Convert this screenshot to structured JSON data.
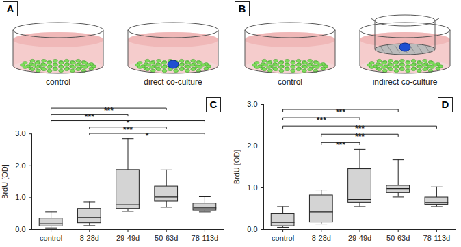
{
  "panels": [
    {
      "panel": "A",
      "dishes": [
        {
          "label": "control"
        },
        {
          "label": "direct co-culture"
        }
      ]
    },
    {
      "panel": "B",
      "dishes": [
        {
          "label": "control"
        },
        {
          "label": "indirect co-culture"
        }
      ]
    }
  ],
  "chart_data": [
    {
      "panel": "C",
      "type": "box",
      "y_label": "BrdU [OD]",
      "categories": [
        "control",
        "8-28d",
        "29-49d",
        "50-63d",
        "78-113d"
      ],
      "min": [
        0.05,
        0.12,
        0.57,
        0.7,
        0.55
      ],
      "q1": [
        0.1,
        0.2,
        0.65,
        0.88,
        0.6
      ],
      "median": [
        0.18,
        0.38,
        0.78,
        1.02,
        0.68
      ],
      "q3": [
        0.35,
        0.65,
        1.87,
        1.35,
        0.82
      ],
      "max": [
        0.55,
        0.87,
        2.85,
        1.87,
        1.03
      ],
      "color": "#d4d4d4",
      "ylim": [
        0,
        3
      ],
      "yticks": [
        0,
        1,
        2,
        3
      ],
      "significance": [
        {
          "from": "control",
          "to": "50-63d",
          "label": "***"
        },
        {
          "from": "control",
          "to": "29-49d",
          "label": "***"
        },
        {
          "from": "control",
          "to": "78-113d",
          "label": "*"
        },
        {
          "from": "8-28d",
          "to": "50-63d",
          "label": "***"
        },
        {
          "from": "8-28d",
          "to": "78-113d",
          "label": "*"
        }
      ]
    },
    {
      "panel": "D",
      "type": "box",
      "y_label": "BrdU [OD]",
      "categories": [
        "control",
        "8-28d",
        "29-49d",
        "50-63d",
        "78-113d"
      ],
      "min": [
        0.05,
        0.13,
        0.55,
        0.78,
        0.55
      ],
      "q1": [
        0.08,
        0.17,
        0.65,
        0.88,
        0.6
      ],
      "median": [
        0.17,
        0.42,
        0.72,
        0.98,
        0.65
      ],
      "q3": [
        0.37,
        0.82,
        1.45,
        1.05,
        0.77
      ],
      "max": [
        0.55,
        0.95,
        1.92,
        1.67,
        1.02
      ],
      "color": "#d4d4d4",
      "ylim": [
        0,
        3
      ],
      "yticks": [
        0,
        1,
        2,
        3
      ],
      "significance": [
        {
          "from": "control",
          "to": "50-63d",
          "label": "***"
        },
        {
          "from": "control",
          "to": "29-49d",
          "label": "***"
        },
        {
          "from": "control",
          "to": "78-113d",
          "label": "***"
        },
        {
          "from": "8-28d",
          "to": "50-63d",
          "label": "***"
        },
        {
          "from": "8-28d",
          "to": "29-49d",
          "label": "***"
        }
      ]
    }
  ]
}
